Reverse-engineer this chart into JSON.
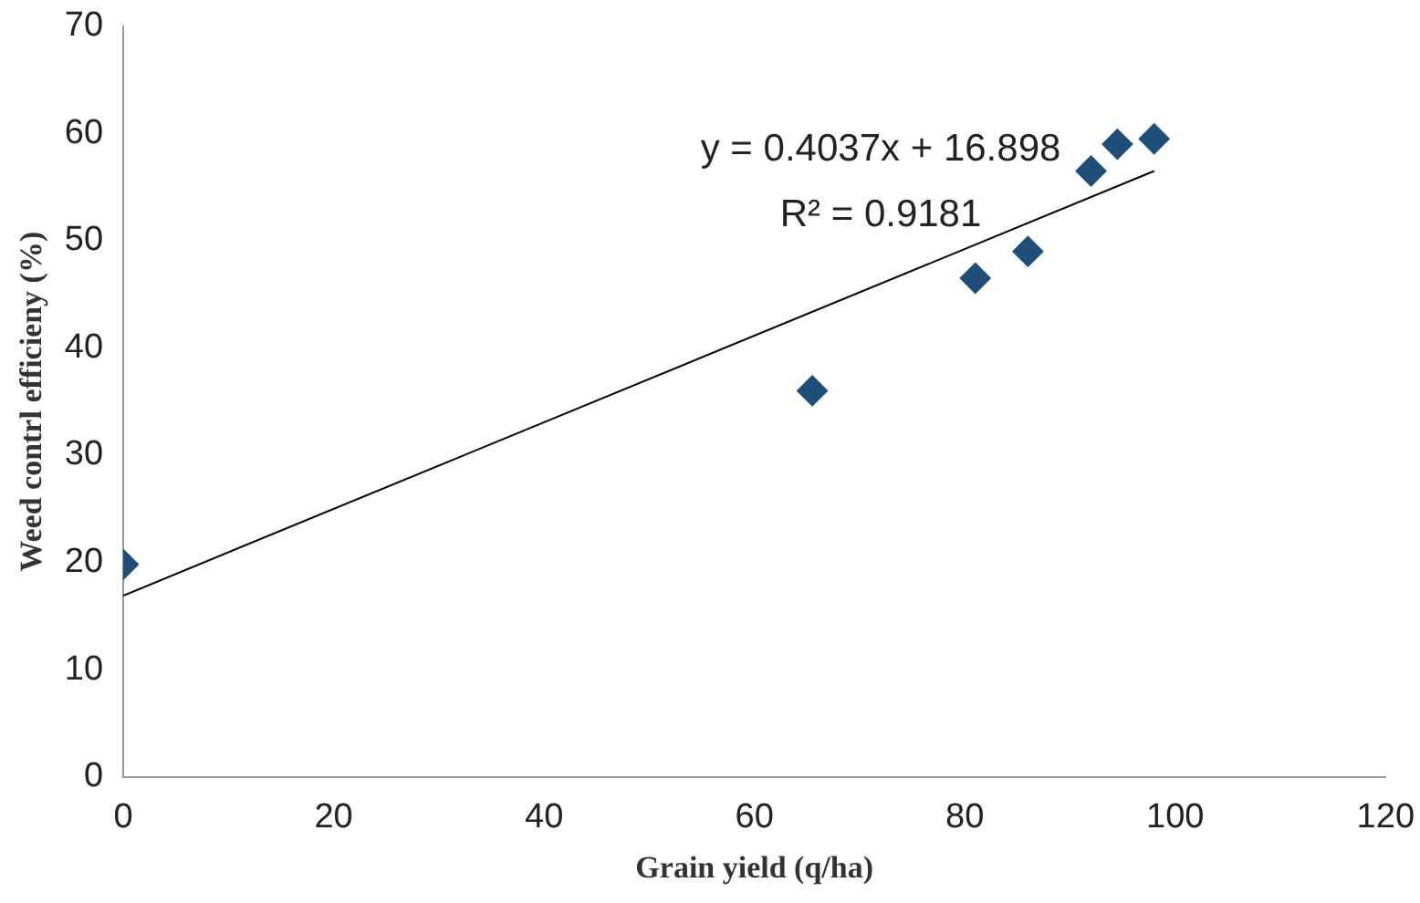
{
  "chart_data": {
    "type": "scatter",
    "xlabel": "Grain yield (q/ha)",
    "ylabel": "Weed contrl efficieny (%)",
    "x": [
      0,
      65.5,
      81,
      86,
      92,
      94.5,
      98
    ],
    "series": [
      {
        "color": "#1f4e79",
        "values": [
          19.8,
          36,
          46.5,
          49,
          56.5,
          59,
          59.5
        ]
      },
      {
        "type": "line",
        "color": "#000000",
        "x": [
          0,
          98
        ],
        "values": [
          16.9,
          56.5
        ],
        "marker": "none"
      }
    ],
    "marker": "diamond",
    "xlim": [
      0,
      120
    ],
    "xticks": [
      0,
      20,
      40,
      60,
      80,
      100,
      120
    ],
    "ylim": [
      0,
      70
    ],
    "yticks": [
      0,
      10,
      20,
      30,
      40,
      50,
      60,
      70
    ],
    "grid": false,
    "legend": false,
    "annotations": [
      "y = 0.4037x + 16.898",
      "R² = 0.9181"
    ]
  }
}
